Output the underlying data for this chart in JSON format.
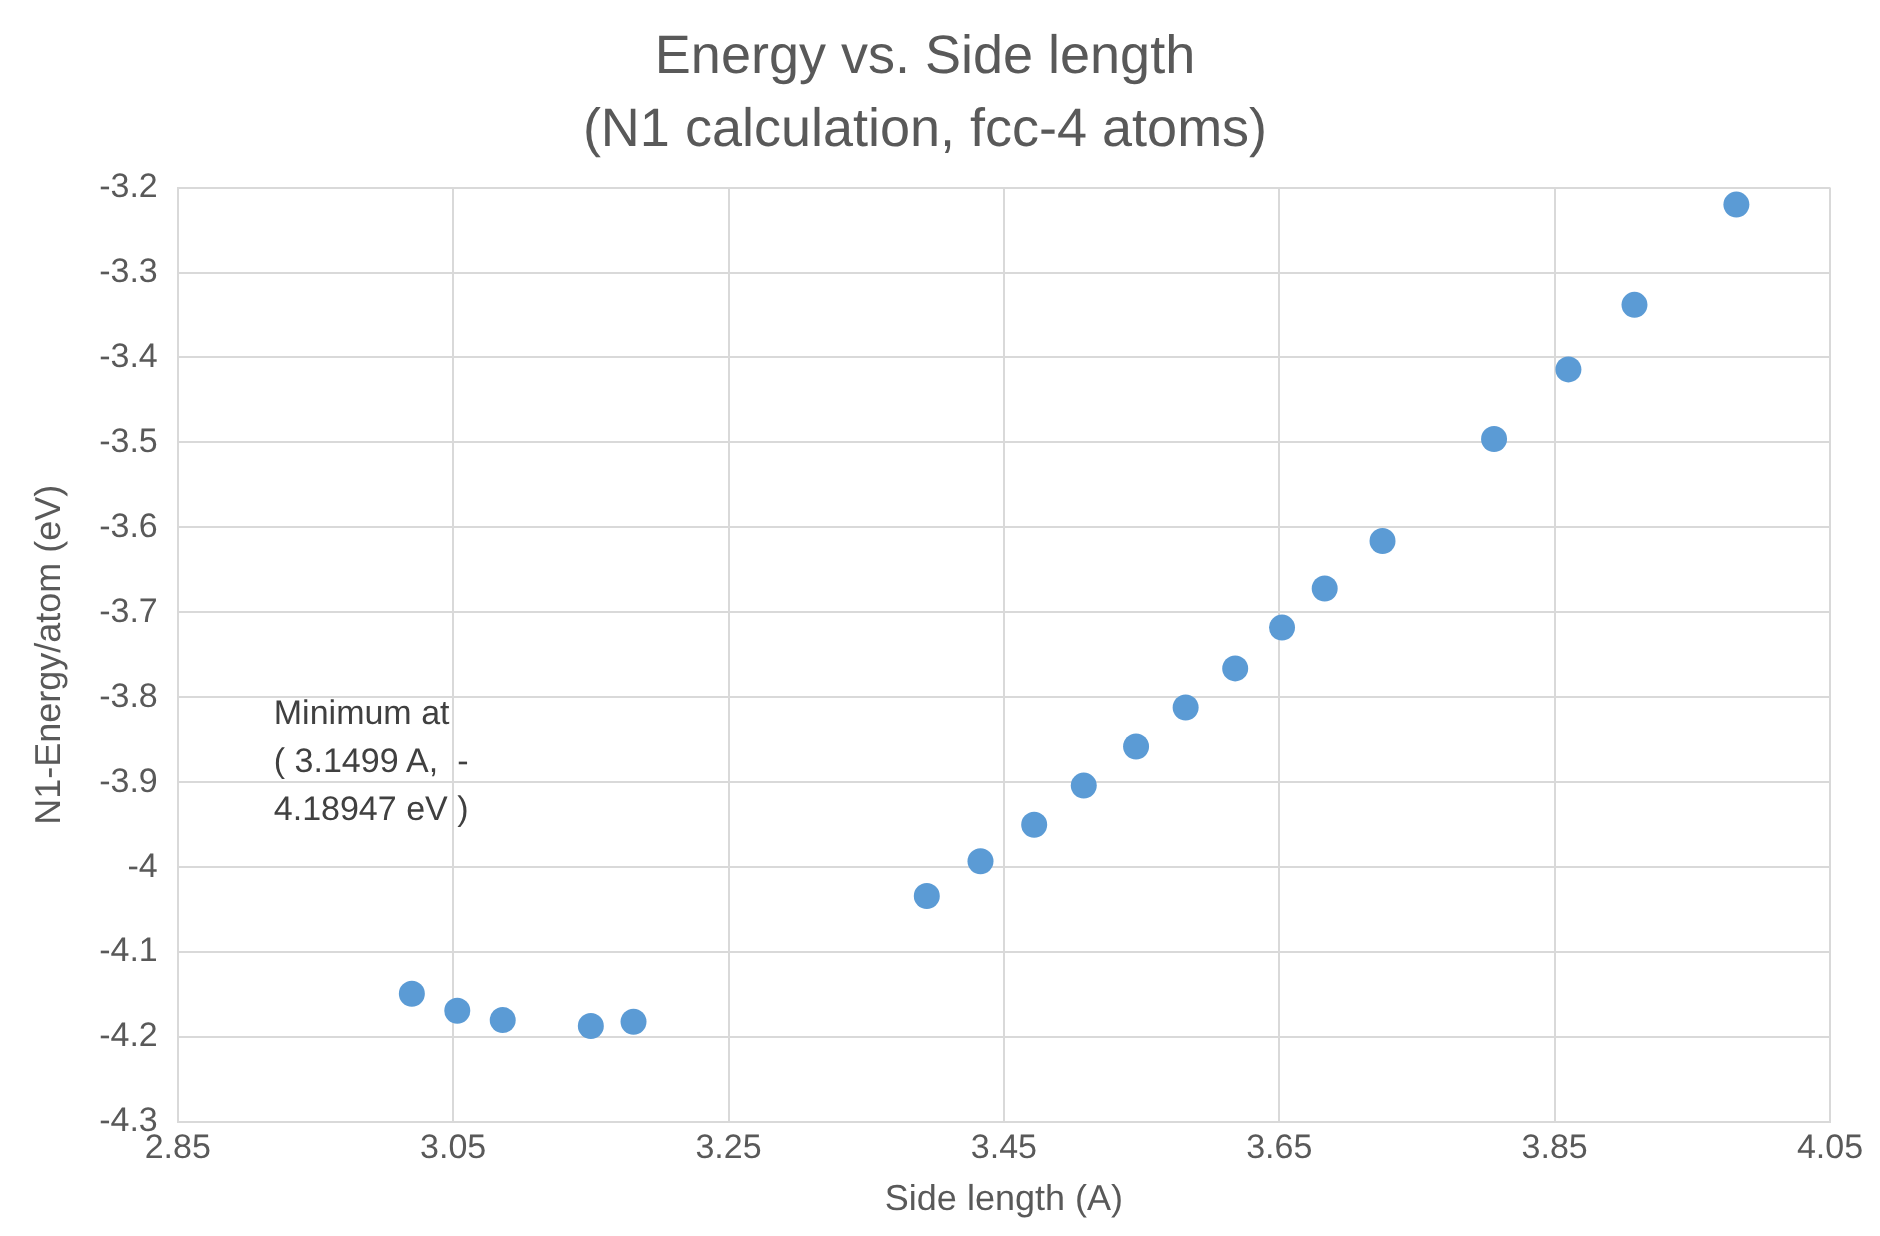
{
  "chart_data": {
    "type": "scatter",
    "title": "Energy vs. Side length",
    "subtitle": "(N1 calculation, fcc-4 atoms)",
    "xlabel": "Side length (A)",
    "ylabel": "N1-Energy/atom (eV)",
    "x": [
      3.02,
      3.053,
      3.086,
      3.15,
      3.181,
      3.394,
      3.433,
      3.472,
      3.508,
      3.546,
      3.582,
      3.618,
      3.652,
      3.683,
      3.725,
      3.806,
      3.86,
      3.908,
      3.982
    ],
    "series": [
      {
        "color": "#5b9bd5",
        "values": [
          -4.149,
          -4.169,
          -4.18,
          -4.187,
          -4.182,
          -4.034,
          -3.993,
          -3.95,
          -3.904,
          -3.858,
          -3.812,
          -3.766,
          -3.718,
          -3.672,
          -3.616,
          -3.496,
          -3.414,
          -3.338,
          -3.22
        ]
      }
    ],
    "xlim": [
      2.85,
      4.05
    ],
    "xticks": [
      {
        "value": 2.85,
        "label": "2.85"
      },
      {
        "value": 3.05,
        "label": "3.05"
      },
      {
        "value": 3.25,
        "label": "3.25"
      },
      {
        "value": 3.45,
        "label": "3.45"
      },
      {
        "value": 3.65,
        "label": "3.65"
      },
      {
        "value": 3.85,
        "label": "3.85"
      },
      {
        "value": 4.05,
        "label": "4.05"
      }
    ],
    "ylim": [
      -4.3,
      -3.2
    ],
    "yticks": [
      -4.3,
      -4.2,
      -4.1,
      -4,
      -3.9,
      -3.8,
      -3.7,
      -3.6,
      -3.5,
      -3.4,
      -3.3,
      -3.2
    ],
    "annotations": [
      "Minimum at\n( 3.1499 A,  -\n4.18947 eV )"
    ],
    "grid": true,
    "legend": false,
    "marker": "circle"
  }
}
